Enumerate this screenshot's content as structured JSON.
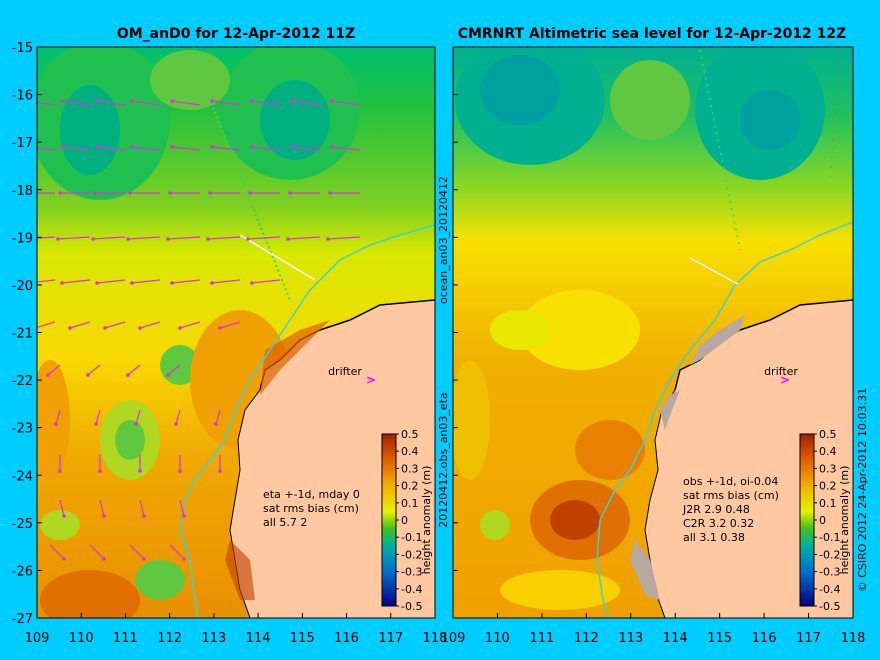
{
  "left_panel": {
    "title": "OM_anD0 for 12-Apr-2012 11Z",
    "annotation": [
      "eta +-1d, mday 0",
      "sat rms bias (cm)",
      "all 5.7 2"
    ],
    "drifter_label": "drifter"
  },
  "right_panel": {
    "title": "CMRNRT Altimetric sea level  for 12-Apr-2012 12Z",
    "annotation": [
      "obs +-1d, oi-0.04",
      "sat rms bias (cm)",
      "J2R   2.9 0.48",
      "C2R   3.2 0.32",
      "all 3.1 0.38"
    ],
    "drifter_label": "drifter"
  },
  "side_labels": {
    "top": "ocean_an03_20120412",
    "bottom": "20120412.obs_an03_eta",
    "credit": "© CSIRO 2012   24-Apr-2012 10:03:31"
  },
  "axes": {
    "x_ticks": [
      "109",
      "110",
      "111",
      "112",
      "113",
      "114",
      "115",
      "116",
      "117",
      "118"
    ],
    "y_ticks": [
      "-15",
      "-16",
      "-17",
      "-18",
      "-19",
      "-20",
      "-21",
      "-22",
      "-23",
      "-24",
      "-25",
      "-26",
      "-27"
    ]
  },
  "colorbar": {
    "label": "height anomaly (m)",
    "ticks": [
      "0.5",
      "0.4",
      "0.3",
      "0.2",
      "0.1",
      "0",
      "-0.1",
      "-0.2",
      "-0.3",
      "-0.4",
      "-0.5"
    ]
  },
  "colors": {
    "background": "#00cdff",
    "land": "#ffc8a0",
    "coast": "#000000"
  }
}
